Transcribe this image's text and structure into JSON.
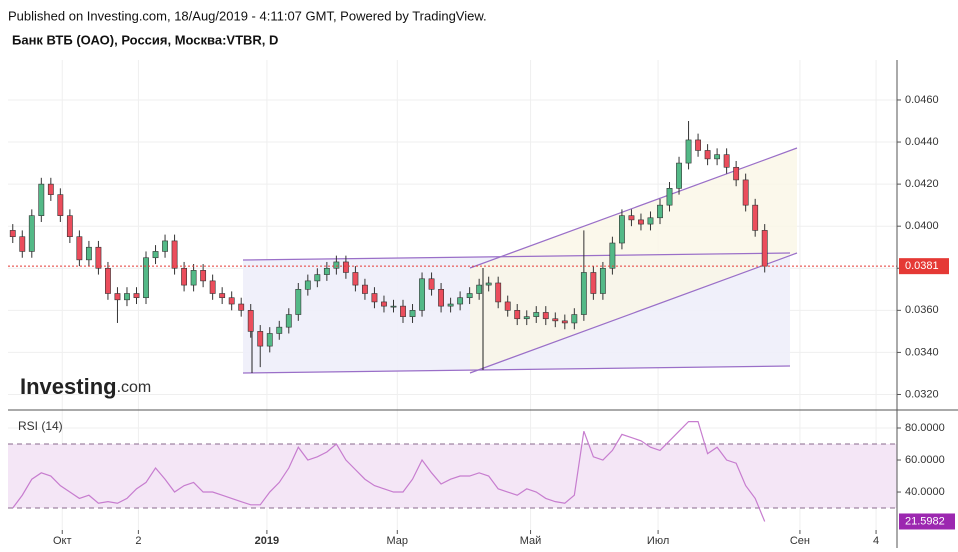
{
  "header": {
    "published": "Published on Investing.com, 18/Aug/2019 - 4:11:07 GMT, Powered by TradingView.",
    "logo": {
      "brand": "Investing",
      "suffix": ".com"
    }
  },
  "chart_data": [
    {
      "type": "candlestick",
      "title": "Банк ВТБ (ОАО), Россия, Москва:VTBR, D",
      "up_color": "#53b987",
      "down_color": "#eb4d5c",
      "xlim": [
        -0.5,
        92.9
      ],
      "ylim": [
        0.0315,
        0.0479
      ],
      "yticks": [
        {
          "value": 0.032,
          "label": "0.0320"
        },
        {
          "value": 0.034,
          "label": "0.0340"
        },
        {
          "value": 0.036,
          "label": "0.0360"
        },
        {
          "value": 0.038,
          "label": "0.0380"
        },
        {
          "value": 0.04,
          "label": "0.0400"
        },
        {
          "value": 0.042,
          "label": "0.0420"
        },
        {
          "value": 0.044,
          "label": "0.0440"
        },
        {
          "value": 0.046,
          "label": "0.0460"
        }
      ],
      "grid": true,
      "last_price": {
        "value": 0.0381,
        "label": "0.0381"
      },
      "open": [
        0.0398,
        0.0395,
        0.0388,
        0.0405,
        0.042,
        0.0415,
        0.0405,
        0.0395,
        0.0384,
        0.039,
        0.038,
        0.0368,
        0.0365,
        0.0368,
        0.0366,
        0.0385,
        0.0388,
        0.0393,
        0.038,
        0.0372,
        0.0379,
        0.0374,
        0.0368,
        0.0366,
        0.0363,
        0.036,
        0.035,
        0.0343,
        0.0349,
        0.0352,
        0.0358,
        0.037,
        0.0374,
        0.0377,
        0.038,
        0.0383,
        0.0378,
        0.0372,
        0.0368,
        0.0364,
        0.0362,
        0.0362,
        0.0357,
        0.036,
        0.0375,
        0.037,
        0.0362,
        0.0363,
        0.0366,
        0.0368,
        0.0372,
        0.0373,
        0.0364,
        0.036,
        0.0356,
        0.0357,
        0.0359,
        0.0356,
        0.0355,
        0.0354,
        0.0358,
        0.0378,
        0.0368,
        0.038,
        0.0392,
        0.0405,
        0.0403,
        0.0401,
        0.0404,
        0.041,
        0.0418,
        0.043,
        0.0441,
        0.0436,
        0.0432,
        0.0434,
        0.0428,
        0.0422,
        0.041,
        0.0398
      ],
      "high": [
        0.0401,
        0.0398,
        0.0408,
        0.0423,
        0.0423,
        0.0418,
        0.0408,
        0.0398,
        0.0393,
        0.0393,
        0.0383,
        0.0371,
        0.0371,
        0.0371,
        0.0388,
        0.0391,
        0.0396,
        0.0396,
        0.0383,
        0.0382,
        0.0382,
        0.0377,
        0.0371,
        0.0369,
        0.0366,
        0.0363,
        0.0353,
        0.0352,
        0.0355,
        0.0361,
        0.0373,
        0.0377,
        0.038,
        0.0383,
        0.0386,
        0.0386,
        0.0381,
        0.0375,
        0.0371,
        0.0367,
        0.0365,
        0.0365,
        0.0363,
        0.0378,
        0.0378,
        0.0373,
        0.0366,
        0.0369,
        0.0371,
        0.0375,
        0.0376,
        0.0376,
        0.0367,
        0.0363,
        0.036,
        0.0362,
        0.0362,
        0.0359,
        0.0358,
        0.0361,
        0.0398,
        0.0381,
        0.0383,
        0.0395,
        0.0408,
        0.0408,
        0.0406,
        0.0407,
        0.0413,
        0.0421,
        0.0433,
        0.045,
        0.0444,
        0.0439,
        0.0437,
        0.0437,
        0.0431,
        0.0425,
        0.0413,
        0.0401
      ],
      "low": [
        0.0392,
        0.0385,
        0.0385,
        0.0402,
        0.0412,
        0.0402,
        0.0392,
        0.0381,
        0.0381,
        0.0377,
        0.0365,
        0.0354,
        0.0362,
        0.0363,
        0.0363,
        0.0382,
        0.0385,
        0.0377,
        0.0369,
        0.0369,
        0.0371,
        0.0365,
        0.0363,
        0.036,
        0.0357,
        0.0347,
        0.0333,
        0.034,
        0.0346,
        0.0349,
        0.0355,
        0.0367,
        0.0371,
        0.0374,
        0.0377,
        0.0375,
        0.0369,
        0.0365,
        0.0361,
        0.0359,
        0.0359,
        0.0354,
        0.0354,
        0.0357,
        0.0367,
        0.0359,
        0.0359,
        0.036,
        0.0363,
        0.0365,
        0.0369,
        0.0361,
        0.0357,
        0.0353,
        0.0353,
        0.0354,
        0.0353,
        0.0352,
        0.0351,
        0.0351,
        0.0355,
        0.0365,
        0.0365,
        0.0377,
        0.0389,
        0.04,
        0.0398,
        0.0398,
        0.0401,
        0.0407,
        0.0415,
        0.0427,
        0.0433,
        0.0429,
        0.0429,
        0.0425,
        0.0419,
        0.0407,
        0.0395,
        0.0378
      ],
      "close": [
        0.0395,
        0.0388,
        0.0405,
        0.042,
        0.0415,
        0.0405,
        0.0395,
        0.0384,
        0.039,
        0.038,
        0.0368,
        0.0365,
        0.0368,
        0.0366,
        0.0385,
        0.0388,
        0.0393,
        0.038,
        0.0372,
        0.0379,
        0.0374,
        0.0368,
        0.0366,
        0.0363,
        0.036,
        0.035,
        0.0343,
        0.0349,
        0.0352,
        0.0358,
        0.037,
        0.0374,
        0.0377,
        0.038,
        0.0383,
        0.0378,
        0.0372,
        0.0368,
        0.0364,
        0.0362,
        0.0362,
        0.0357,
        0.036,
        0.0375,
        0.037,
        0.0362,
        0.0363,
        0.0366,
        0.0368,
        0.0372,
        0.0373,
        0.0364,
        0.036,
        0.0356,
        0.0357,
        0.0359,
        0.0356,
        0.0355,
        0.0354,
        0.0358,
        0.0378,
        0.0368,
        0.038,
        0.0392,
        0.0405,
        0.0403,
        0.0401,
        0.0404,
        0.041,
        0.0418,
        0.043,
        0.0441,
        0.0436,
        0.0432,
        0.0434,
        0.0428,
        0.0422,
        0.041,
        0.0398,
        0.0381
      ]
    },
    {
      "type": "line",
      "title": "RSI (14)",
      "color": "#c77dcf",
      "band_color": "#f4e6f6",
      "xlim": [
        -0.5,
        92.9
      ],
      "ylim": [
        19.4,
        90
      ],
      "xticks": [
        {
          "value": 5.2,
          "label": "Окт"
        },
        {
          "value": 13.2,
          "label": "2"
        },
        {
          "value": 26.7,
          "label": "2019"
        },
        {
          "value": 40.4,
          "label": "Мар"
        },
        {
          "value": 54.4,
          "label": "Май"
        },
        {
          "value": 67.8,
          "label": "Июл"
        },
        {
          "value": 82.7,
          "label": "Сен"
        },
        {
          "value": 90.7,
          "label": "4"
        }
      ],
      "yticks": [
        {
          "value": 40,
          "label": "40.0000"
        },
        {
          "value": 60,
          "label": "60.0000"
        },
        {
          "value": 80,
          "label": "80.0000"
        }
      ],
      "levels": [
        30,
        70
      ],
      "last_value": {
        "value": 21.5982,
        "label": "21.5982"
      },
      "values": [
        30,
        38,
        48,
        52,
        50,
        44,
        40,
        36,
        38,
        33,
        34,
        33,
        36,
        42,
        46,
        55,
        48,
        40,
        44,
        46,
        40,
        40,
        38,
        36,
        34,
        32,
        32,
        40,
        46,
        55,
        68,
        60,
        62,
        65,
        70,
        60,
        54,
        48,
        44,
        42,
        40,
        40,
        48,
        60,
        52,
        45,
        48,
        50,
        50,
        52,
        50,
        42,
        40,
        38,
        42,
        40,
        36,
        34,
        33,
        38,
        78,
        62,
        60,
        66,
        76,
        74,
        72,
        68,
        66,
        72,
        78,
        84,
        84,
        64,
        68,
        60,
        58,
        44,
        36,
        21.5982
      ]
    }
  ]
}
